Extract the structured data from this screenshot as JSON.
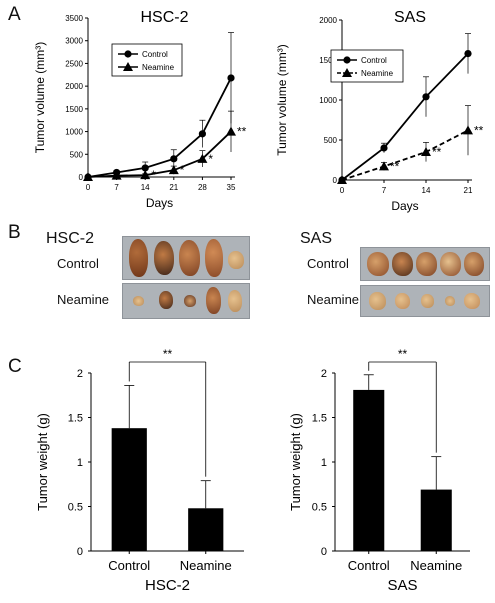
{
  "panels": {
    "A": "A",
    "B": "B",
    "C": "C"
  },
  "colors": {
    "ink": "#000000",
    "tissue_dark": "#7a3f22",
    "tissue_mid": "#b06b3a",
    "tissue_light": "#d6a06a",
    "tissue_pale": "#e6c18e",
    "photo_bg": "#aeb3b8"
  },
  "chart_data": [
    {
      "type": "line",
      "title": "HSC-2",
      "xlabel": "Days",
      "ylabel": "Tumor volume (mm³)",
      "x": [
        0,
        7,
        14,
        21,
        28,
        35
      ],
      "xlim": [
        0,
        35
      ],
      "ylim": [
        0,
        3500
      ],
      "yticks": [
        0,
        500,
        1000,
        1500,
        2000,
        2500,
        3000,
        3500
      ],
      "legend": "top-left",
      "series": [
        {
          "name": "Control",
          "marker": "circle",
          "dash": "solid",
          "values": [
            0,
            100,
            200,
            400,
            950,
            2180
          ],
          "errors": [
            0,
            40,
            130,
            200,
            300,
            1000
          ]
        },
        {
          "name": "Neamine",
          "marker": "triangle",
          "dash": "solid",
          "values": [
            0,
            30,
            40,
            150,
            400,
            1000
          ],
          "errors": [
            0,
            20,
            30,
            90,
            180,
            450
          ]
        }
      ],
      "annotations": [
        {
          "x": 14,
          "series": "Neamine",
          "text": "*"
        },
        {
          "x": 21,
          "series": "Neamine",
          "text": "*"
        },
        {
          "x": 28,
          "series": "Neamine",
          "text": "*"
        },
        {
          "x": 35,
          "series": "Neamine",
          "text": "**"
        }
      ]
    },
    {
      "type": "line",
      "title": "SAS",
      "xlabel": "Days",
      "ylabel": "Tumor volume (mm³)",
      "x": [
        0,
        7,
        14,
        21
      ],
      "xlim": [
        0,
        21
      ],
      "ylim": [
        0,
        2000
      ],
      "yticks": [
        0,
        500,
        1000,
        1500,
        2000
      ],
      "legend": "top-left",
      "series": [
        {
          "name": "Control",
          "marker": "circle",
          "dash": "solid",
          "values": [
            0,
            400,
            1040,
            1580
          ],
          "errors": [
            0,
            60,
            250,
            250
          ]
        },
        {
          "name": "Neamine",
          "marker": "triangle",
          "dash": "dashed",
          "values": [
            0,
            170,
            350,
            620
          ],
          "errors": [
            0,
            50,
            120,
            310
          ]
        }
      ],
      "annotations": [
        {
          "x": 7,
          "series": "Neamine",
          "text": "**"
        },
        {
          "x": 14,
          "series": "Neamine",
          "text": "**"
        },
        {
          "x": 21,
          "series": "Neamine",
          "text": "**"
        }
      ]
    },
    {
      "type": "bar",
      "title": "HSC-2",
      "ylabel": "Tumor weight (g)",
      "categories": [
        "Control",
        "Neamine"
      ],
      "values": [
        1.38,
        0.48
      ],
      "errors": [
        0.48,
        0.31
      ],
      "ylim": [
        0,
        2
      ],
      "yticks": [
        "0",
        "0.5",
        "1",
        "1.5",
        "2"
      ],
      "significance": "**"
    },
    {
      "type": "bar",
      "title": "SAS",
      "ylabel": "Tumor weight (g)",
      "categories": [
        "Control",
        "Neamine"
      ],
      "values": [
        1.81,
        0.69
      ],
      "errors": [
        0.17,
        0.37
      ],
      "ylim": [
        0,
        2
      ],
      "yticks": [
        "0",
        "0.5",
        "1",
        "1.5",
        "2"
      ],
      "significance": "**"
    }
  ],
  "photos": {
    "HSC-2": {
      "title": "HSC-2",
      "rows": [
        "Control",
        "Neamine"
      ]
    },
    "SAS": {
      "title": "SAS",
      "rows": [
        "Control",
        "Neamine"
      ]
    }
  }
}
